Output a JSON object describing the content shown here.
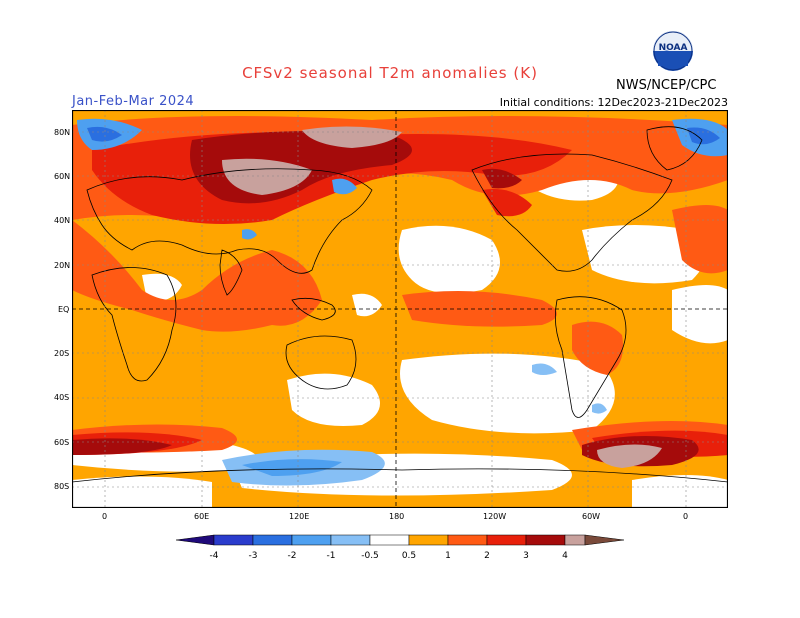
{
  "header": {
    "title": "CFSv2 seasonal T2m anomalies (K)",
    "season": "Jan-Feb-Mar 2024",
    "initial_conditions": "Initial conditions: 12Dec2023-21Dec2023",
    "agency": "NWS/NCEP/CPC",
    "logo_text": "NOAA"
  },
  "map": {
    "lat_labels": [
      "80N",
      "60N",
      "40N",
      "20N",
      "EQ",
      "20S",
      "40S",
      "60S",
      "80S"
    ],
    "lon_labels": [
      "0",
      "60E",
      "120E",
      "180",
      "120W",
      "60W",
      "0"
    ]
  },
  "colorbar": {
    "tick_labels": [
      "-4",
      "-3",
      "-2",
      "-1",
      "-0.5",
      "0.5",
      "1",
      "2",
      "3",
      "4"
    ],
    "colors": {
      "below_minus4": "#1f0a7a",
      "minus4_minus3": "#2a3ccc",
      "minus3_minus2": "#2a6fe0",
      "minus2_minus1": "#4ea0f0",
      "minus1_minus05": "#86bff5",
      "neutral": "#ffffff",
      "p05_p1": "#ffa500",
      "p1_p2": "#ff5a14",
      "p2_p3": "#e8200a",
      "p3_p4": "#a50b0b",
      "p4_up": "#c8a19d",
      "above_p4": "#7a4a3a"
    }
  }
}
